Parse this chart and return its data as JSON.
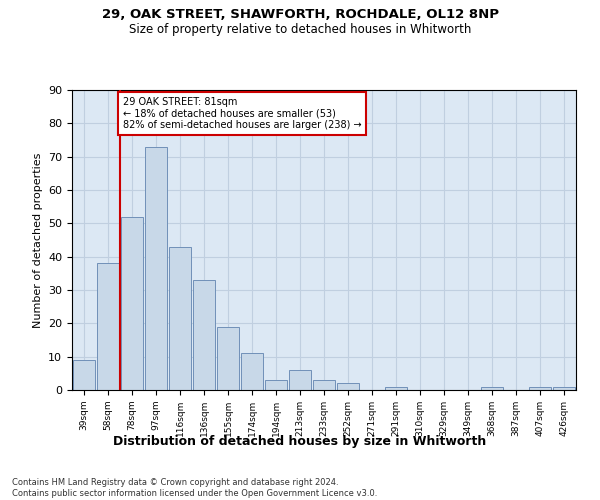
{
  "title1": "29, OAK STREET, SHAWFORTH, ROCHDALE, OL12 8NP",
  "title2": "Size of property relative to detached houses in Whitworth",
  "xlabel": "Distribution of detached houses by size in Whitworth",
  "ylabel": "Number of detached properties",
  "bar_color": "#c8d8e8",
  "bar_edge_color": "#7090b8",
  "grid_color": "#c0cfe0",
  "bg_color": "#dce8f4",
  "marker_line_color": "#cc0000",
  "annotation_line1": "29 OAK STREET: 81sqm",
  "annotation_line2": "← 18% of detached houses are smaller (53)",
  "annotation_line3": "82% of semi-detached houses are larger (238) →",
  "annotation_box_color": "#cc0000",
  "annotation_bg_color": "#ffffff",
  "categories": [
    "39sqm",
    "58sqm",
    "78sqm",
    "97sqm",
    "116sqm",
    "136sqm",
    "155sqm",
    "174sqm",
    "194sqm",
    "213sqm",
    "233sqm",
    "252sqm",
    "271sqm",
    "291sqm",
    "310sqm",
    "329sqm",
    "349sqm",
    "368sqm",
    "387sqm",
    "407sqm",
    "426sqm"
  ],
  "values": [
    9,
    38,
    52,
    73,
    43,
    33,
    19,
    11,
    3,
    6,
    3,
    2,
    0,
    1,
    0,
    0,
    0,
    1,
    0,
    1,
    1
  ],
  "ylim": [
    0,
    90
  ],
  "yticks": [
    0,
    10,
    20,
    30,
    40,
    50,
    60,
    70,
    80,
    90
  ],
  "footer1": "Contains HM Land Registry data © Crown copyright and database right 2024.",
  "footer2": "Contains public sector information licensed under the Open Government Licence v3.0."
}
